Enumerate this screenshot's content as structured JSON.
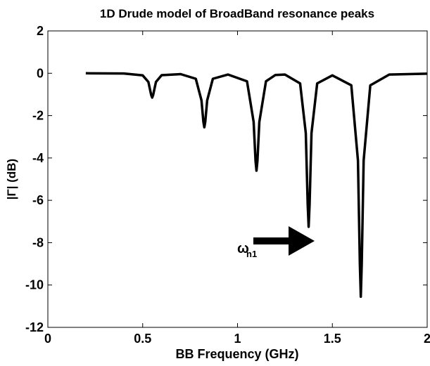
{
  "chart_data": {
    "type": "line",
    "title": "1D Drude model of BroadBand resonance peaks",
    "xlabel": "BB Frequency (GHz)",
    "ylabel": "|Γ| (dB)",
    "x": [
      0.2,
      0.4,
      0.5,
      0.53,
      0.545,
      0.55,
      0.555,
      0.57,
      0.6,
      0.7,
      0.78,
      0.81,
      0.82,
      0.825,
      0.83,
      0.84,
      0.87,
      0.95,
      1.05,
      1.085,
      1.095,
      1.1,
      1.105,
      1.115,
      1.15,
      1.2,
      1.25,
      1.33,
      1.36,
      1.37,
      1.375,
      1.38,
      1.39,
      1.42,
      1.5,
      1.6,
      1.635,
      1.645,
      1.65,
      1.655,
      1.665,
      1.7,
      1.8,
      2.0
    ],
    "series": [
      {
        "name": null,
        "color": "#000000",
        "values": [
          0,
          -0.01,
          -0.1,
          -0.41,
          -1.03,
          -1.15,
          -1.03,
          -0.41,
          -0.09,
          -0.04,
          -0.26,
          -1.28,
          -2.29,
          -2.55,
          -2.29,
          -1.28,
          -0.26,
          -0.06,
          -0.38,
          -2.3,
          -4.14,
          -4.6,
          -4.14,
          -2.3,
          -0.38,
          -0.08,
          -0.06,
          -0.48,
          -2.83,
          -6.2,
          -7.25,
          -6.2,
          -2.83,
          -0.48,
          -0.1,
          -0.57,
          -4.12,
          -9.0,
          -10.55,
          -9.0,
          -4.12,
          -0.57,
          -0.06,
          -0.02
        ]
      }
    ],
    "xlim": [
      0,
      2
    ],
    "xticks": [
      0,
      0.5,
      1,
      1.5,
      2
    ],
    "ylim": [
      -12,
      2
    ],
    "yticks": [
      -12,
      -10,
      -8,
      -6,
      -4,
      -2,
      0,
      2
    ],
    "annotation": {
      "symbol": "ω",
      "subscript": "n1"
    }
  }
}
